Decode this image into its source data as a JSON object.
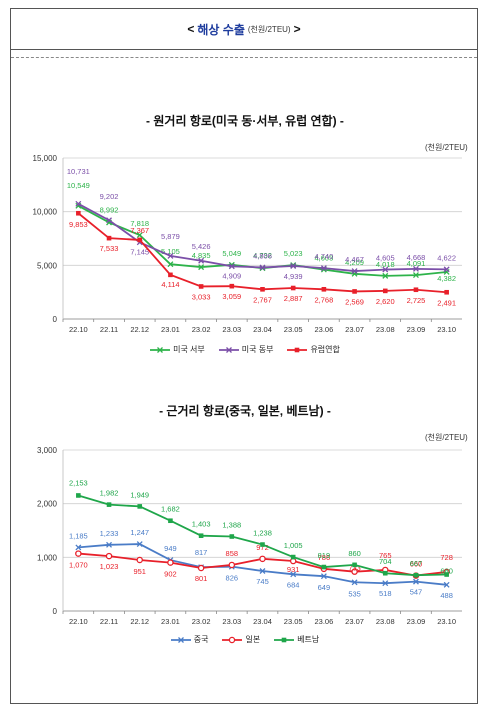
{
  "header": {
    "left_bracket": "<",
    "title": "해상 수출",
    "unit": "(천원/2TEU)",
    "right_bracket": ">"
  },
  "chart_data": [
    {
      "type": "line",
      "title": "- 원거리 항로(미국 동·서부, 유럽 연합) -",
      "unit": "(천원/2TEU)",
      "categories": [
        "22.10",
        "22.11",
        "22.12",
        "23.01",
        "23.02",
        "23.03",
        "23.04",
        "23.05",
        "23.06",
        "23.07",
        "23.08",
        "23.09",
        "23.10"
      ],
      "ylim": [
        0,
        15000
      ],
      "yticks": [
        0,
        5000,
        10000,
        15000
      ],
      "ytick_labels": [
        "0",
        "5,000",
        "10,000",
        "15,000"
      ],
      "grid": true,
      "legend_position": "bottom",
      "series": [
        {
          "name": "미국 서부",
          "color": "#2db34a",
          "marker": "x",
          "values": [
            10549,
            8992,
            7818,
            5105,
            4835,
            5049,
            4732,
            5023,
            4603,
            4209,
            4018,
            4091,
            4382
          ],
          "labels": [
            "10,549",
            "8,992",
            "7,818",
            "5,105",
            "4,835",
            "5,049",
            "4,732",
            "5,023",
            "4,603",
            "4,209",
            "4,018",
            "4,091",
            "4,382"
          ]
        },
        {
          "name": "미국 동부",
          "color": "#7b4fa8",
          "marker": "x",
          "values": [
            10731,
            9202,
            7145,
            5879,
            5426,
            4909,
            4806,
            4939,
            4740,
            4467,
            4605,
            4668,
            4622
          ],
          "labels": [
            "10,731",
            "9,202",
            "7,145",
            "5,879",
            "5,426",
            "4,909",
            "4,806",
            "4,939",
            "4,740",
            "4,467",
            "4,605",
            "4,668",
            "4,622"
          ]
        },
        {
          "name": "유럽연합",
          "color": "#e8202a",
          "marker": "square",
          "values": [
            9853,
            7533,
            7367,
            4114,
            3033,
            3059,
            2767,
            2887,
            2768,
            2569,
            2620,
            2725,
            2491
          ],
          "labels": [
            "9,853",
            "7,533",
            "7,367",
            "4,114",
            "3,033",
            "3,059",
            "2,767",
            "2,887",
            "2,768",
            "2,569",
            "2,620",
            "2,725",
            "2,491"
          ]
        }
      ]
    },
    {
      "type": "line",
      "title": "- 근거리 항로(중국, 일본, 베트남) -",
      "unit": "(천원/2TEU)",
      "categories": [
        "22.10",
        "22.11",
        "22.12",
        "23.01",
        "23.02",
        "23.03",
        "23.04",
        "23.05",
        "23.06",
        "23.07",
        "23.08",
        "23.09",
        "23.10"
      ],
      "ylim": [
        0,
        3000
      ],
      "yticks": [
        0,
        1000,
        2000,
        3000
      ],
      "ytick_labels": [
        "0",
        "1,000",
        "2,000",
        "3,000"
      ],
      "grid": true,
      "legend_position": "bottom",
      "series": [
        {
          "name": "중국",
          "color": "#4a7cc7",
          "marker": "x",
          "values": [
            1185,
            1233,
            1247,
            949,
            817,
            826,
            745,
            684,
            649,
            535,
            518,
            547,
            488
          ],
          "labels": [
            "1,185",
            "1,233",
            "1,247",
            "949",
            "817",
            "826",
            "745",
            "684",
            "649",
            "535",
            "518",
            "547",
            "488"
          ]
        },
        {
          "name": "일본",
          "color": "#e8202a",
          "marker": "circle",
          "values": [
            1070,
            1023,
            951,
            902,
            801,
            858,
            972,
            931,
            786,
            733,
            765,
            660,
            728
          ],
          "labels": [
            "1,070",
            "1,023",
            "951",
            "902",
            "801",
            "858",
            "972",
            "931",
            "786",
            "733",
            "765",
            "660",
            "728"
          ]
        },
        {
          "name": "베트남",
          "color": "#1fa64a",
          "marker": "square",
          "values": [
            2153,
            1982,
            1949,
            1682,
            1403,
            1388,
            1238,
            1005,
            819,
            860,
            704,
            667,
            680
          ],
          "labels": [
            "2,153",
            "1,982",
            "1,949",
            "1,682",
            "1,403",
            "1,388",
            "1,238",
            "1,005",
            "819",
            "860",
            "704",
            "667",
            "680"
          ]
        }
      ]
    }
  ]
}
